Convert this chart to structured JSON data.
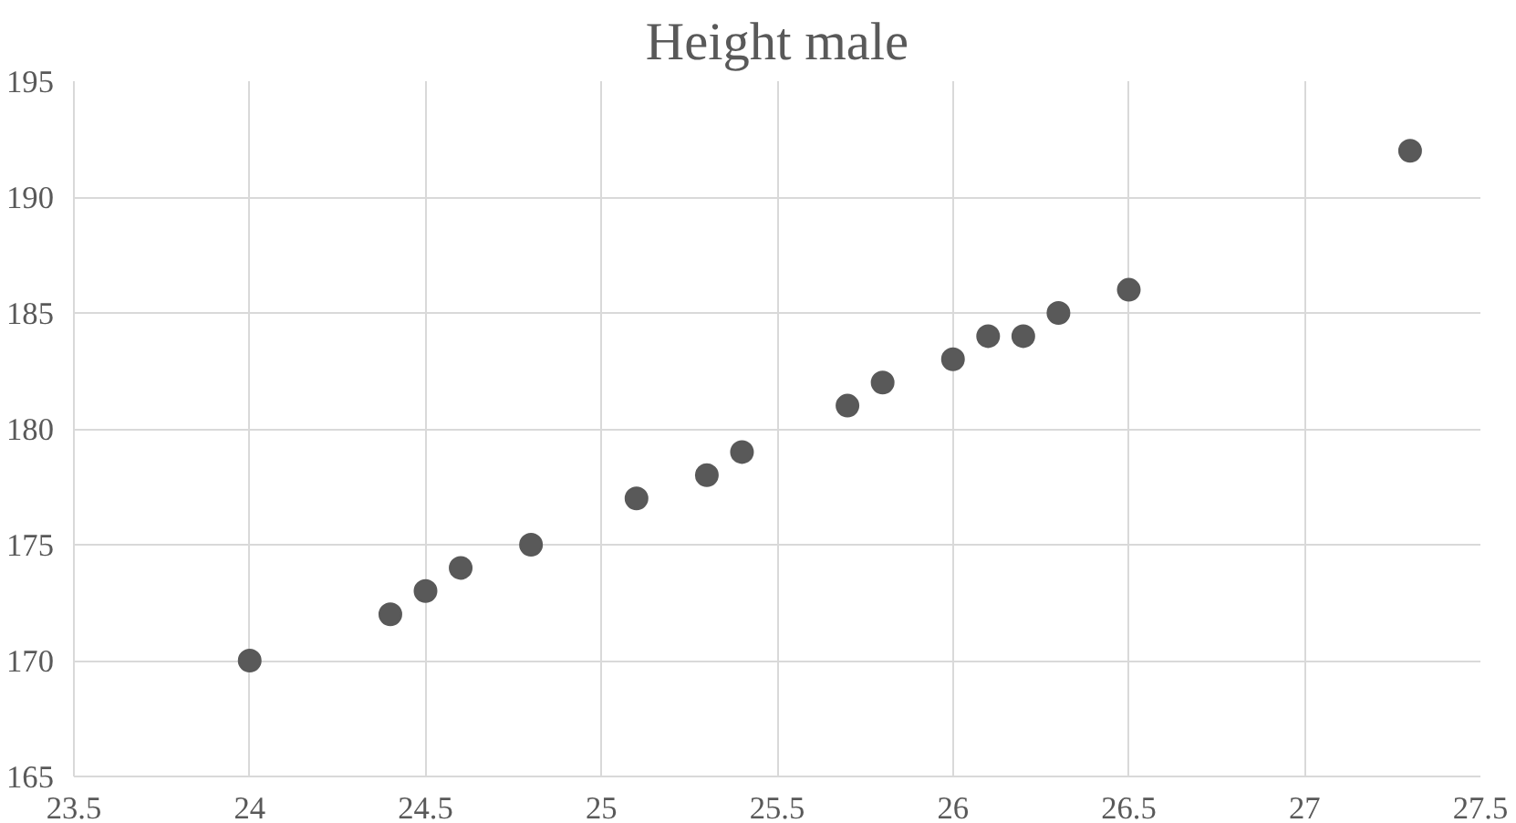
{
  "chart_data": {
    "type": "scatter",
    "title": "Height male",
    "x": [
      24,
      24.4,
      24.5,
      24.6,
      24.8,
      25.1,
      25.3,
      25.4,
      25.7,
      25.8,
      26,
      26.1,
      26.2,
      26.3,
      26.5,
      27.3
    ],
    "values": [
      170,
      172,
      173,
      174,
      175,
      177,
      178,
      179,
      181,
      182,
      183,
      184,
      184,
      185,
      186,
      192
    ],
    "color": "#595959",
    "marker": "circle",
    "xlim": [
      23.5,
      27.5
    ],
    "xticks": [
      23.5,
      24,
      24.5,
      25,
      25.5,
      26,
      26.5,
      27,
      27.5
    ],
    "ylim": [
      165,
      195
    ],
    "yticks": [
      165,
      170,
      175,
      180,
      185,
      190,
      195
    ],
    "grid": true
  }
}
